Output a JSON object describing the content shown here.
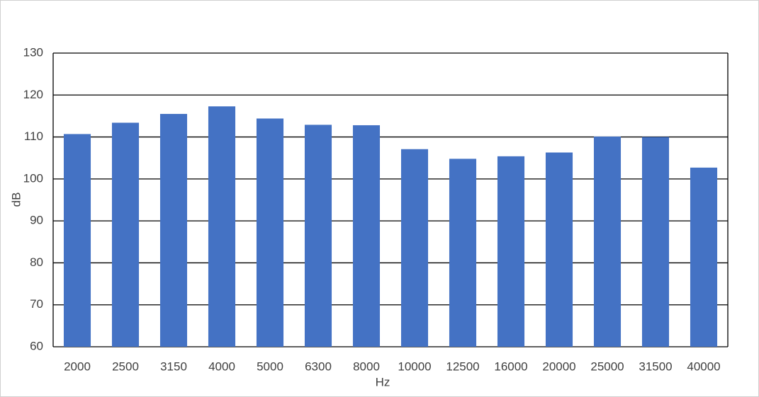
{
  "chart_data": {
    "type": "bar",
    "x_label": "Hz",
    "y_label": "dB",
    "categories": [
      "2000",
      "2500",
      "3150",
      "4000",
      "5000",
      "6300",
      "8000",
      "10000",
      "12500",
      "16000",
      "20000",
      "25000",
      "31500",
      "40000"
    ],
    "values": [
      110.7,
      113.4,
      115.5,
      117.3,
      114.4,
      112.9,
      112.8,
      107.1,
      104.8,
      105.4,
      106.3,
      110.1,
      110.0,
      102.7
    ],
    "color": "#4472c4",
    "ylim": [
      60,
      130
    ],
    "yticks": [
      60,
      70,
      80,
      90,
      100,
      110,
      120,
      130
    ],
    "grid": true
  }
}
